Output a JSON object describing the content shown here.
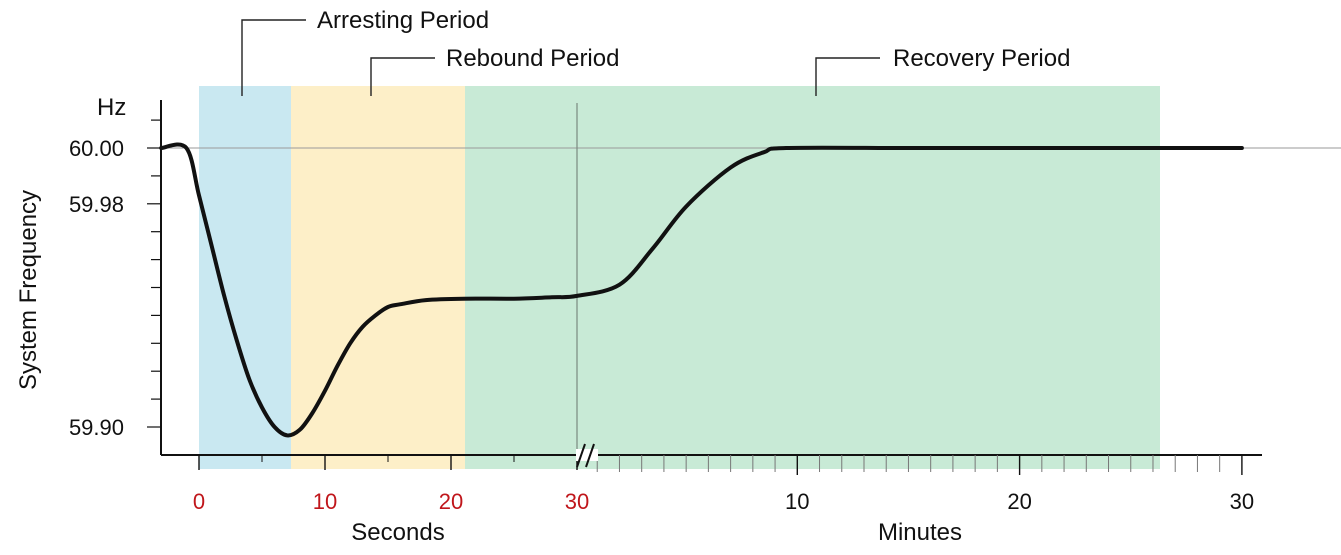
{
  "chart_data": {
    "type": "line",
    "ylabel": "System Frequency",
    "y_unit": "Hz",
    "y_ticks": [
      "60.00",
      "59.98",
      "59.90"
    ],
    "ylim": [
      59.893,
      60.016
    ],
    "x_seconds": {
      "label": "Seconds",
      "ticks": [
        "0",
        "10",
        "20",
        "30"
      ],
      "color": "#c0161b"
    },
    "x_minutes": {
      "label": "Minutes",
      "ticks": [
        "10",
        "20",
        "30"
      ],
      "color": "#111111"
    },
    "grid": false,
    "reference_line": 60.0,
    "periods": [
      {
        "name": "Arresting Period",
        "color": "#c9e8f1"
      },
      {
        "name": "Rebound Period",
        "color": "#fdefc8"
      },
      {
        "name": "Recovery Period",
        "color": "#c8ead6"
      }
    ],
    "series": [
      {
        "line_color": "#111111",
        "points_seconds": [
          [
            -3,
            60.0
          ],
          [
            -1,
            60.0
          ],
          [
            0,
            59.983
          ],
          [
            1,
            59.965
          ],
          [
            2,
            59.947
          ],
          [
            3,
            59.931
          ],
          [
            4,
            59.917
          ],
          [
            5,
            59.907
          ],
          [
            6,
            59.9
          ],
          [
            7,
            59.897
          ],
          [
            8,
            59.899
          ],
          [
            9,
            59.905
          ],
          [
            10,
            59.913
          ],
          [
            11,
            59.922
          ],
          [
            12,
            59.93
          ],
          [
            13,
            59.936
          ],
          [
            14,
            59.94
          ],
          [
            15,
            59.943
          ],
          [
            16,
            59.944
          ],
          [
            18,
            59.9455
          ],
          [
            21,
            59.946
          ],
          [
            25,
            59.946
          ],
          [
            28,
            59.9465
          ],
          [
            30,
            59.947
          ]
        ],
        "points_minutes": [
          [
            2,
            59.951
          ],
          [
            3.5,
            59.964
          ],
          [
            5,
            59.979
          ],
          [
            7,
            59.993
          ],
          [
            8.5,
            59.9985
          ],
          [
            9.5,
            60.0
          ],
          [
            15,
            60.0
          ],
          [
            20,
            60.0
          ],
          [
            25,
            60.0
          ],
          [
            30,
            60.0
          ]
        ]
      }
    ]
  }
}
